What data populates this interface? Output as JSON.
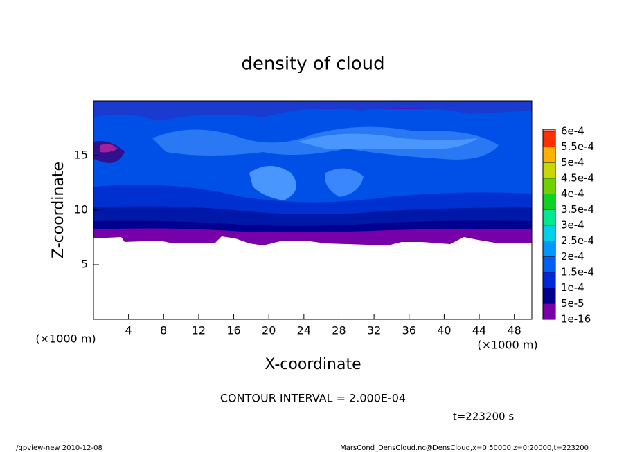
{
  "chart_data": {
    "type": "contour",
    "title": "density of cloud",
    "x_label": "X-coordinate",
    "y_label": "Z-coordinate",
    "x_unit": "(×1000 m)",
    "y_unit": "(×1000 m)",
    "xlim": [
      0,
      50
    ],
    "ylim": [
      0,
      20
    ],
    "xticks": [
      4,
      8,
      12,
      16,
      20,
      24,
      28,
      32,
      36,
      40,
      44,
      48
    ],
    "yticks": [
      5,
      10,
      15
    ],
    "levels": [
      {
        "value": 1e-16,
        "label": "1e-16"
      },
      {
        "value": 5e-05,
        "label": "5e-5"
      },
      {
        "value": 0.0001,
        "label": "1e-4"
      },
      {
        "value": 0.00015,
        "label": "1.5e-4"
      },
      {
        "value": 0.0002,
        "label": "2e-4"
      },
      {
        "value": 0.00025,
        "label": "2.5e-4"
      },
      {
        "value": 0.0003,
        "label": "3e-4"
      },
      {
        "value": 0.00035,
        "label": "3.5e-4"
      },
      {
        "value": 0.0004,
        "label": "4e-4"
      },
      {
        "value": 0.00045,
        "label": "4.5e-4"
      },
      {
        "value": 0.0005,
        "label": "5e-4"
      },
      {
        "value": 0.00055,
        "label": "5.5e-4"
      },
      {
        "value": 0.0006,
        "label": "6e-4"
      }
    ],
    "level_colors": [
      "#7800a8",
      "#00008c",
      "#0028d8",
      "#0060f0",
      "#0098ff",
      "#00d0e8",
      "#00e890",
      "#10d020",
      "#70d000",
      "#c8d800",
      "#ffb000",
      "#ff3000"
    ],
    "top_color": "#ff9090",
    "contour_interval": "CONTOUR INTERVAL = 2.000E-04",
    "time_label": "t=223200 s",
    "footer_left": "./gpview-new  2010-12-08",
    "footer_right": "MarsCond_DensCloud.nc@DensCloud,x=0:50000,z=0:20000,t=223200"
  }
}
